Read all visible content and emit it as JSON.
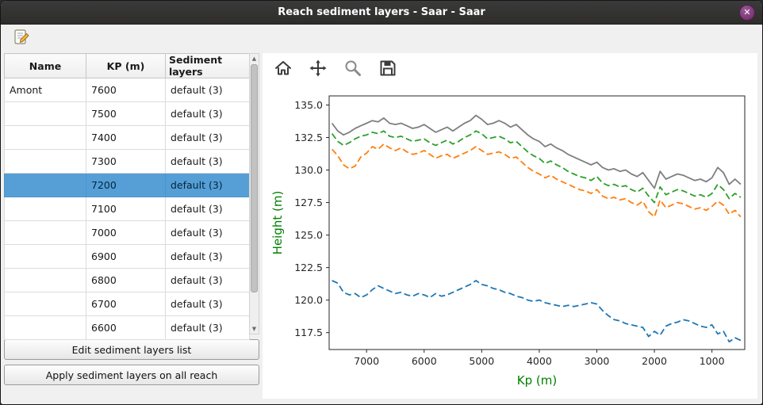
{
  "window": {
    "title": "Reach sediment layers - Saar - Saar",
    "close_glyph": "✕"
  },
  "icons": {
    "edit_tool": "notepad-pencil",
    "home": "house",
    "pan": "four-arrows",
    "zoom": "magnifier",
    "save": "floppy-disk",
    "close": "x-in-circle",
    "scroll_up_glyph": "▲",
    "scroll_down_glyph": "▼"
  },
  "table": {
    "columns": [
      "Name",
      "KP (m)",
      "Sediment layers"
    ],
    "selected_kp": "7200",
    "rows": [
      {
        "name": "Amont",
        "kp": "7600",
        "layers": "default (3)"
      },
      {
        "name": "",
        "kp": "7500",
        "layers": "default (3)"
      },
      {
        "name": "",
        "kp": "7400",
        "layers": "default (3)"
      },
      {
        "name": "",
        "kp": "7300",
        "layers": "default (3)"
      },
      {
        "name": "",
        "kp": "7200",
        "layers": "default (3)"
      },
      {
        "name": "",
        "kp": "7100",
        "layers": "default (3)"
      },
      {
        "name": "",
        "kp": "7000",
        "layers": "default (3)"
      },
      {
        "name": "",
        "kp": "6900",
        "layers": "default (3)"
      },
      {
        "name": "",
        "kp": "6800",
        "layers": "default (3)"
      },
      {
        "name": "",
        "kp": "6700",
        "layers": "default (3)"
      },
      {
        "name": "",
        "kp": "6600",
        "layers": "default (3)"
      }
    ]
  },
  "buttons": {
    "edit_label": "Edit sediment layers list",
    "apply_label": "Apply sediment layers on all reach"
  },
  "chart_data": {
    "type": "line",
    "title": "",
    "xlabel": "Kp (m)",
    "ylabel": "Height (m)",
    "axis_label_color": "#008000",
    "tick_color": "#262626",
    "x_reversed": true,
    "xlim": [
      7650,
      430
    ],
    "ylim": [
      116.2,
      135.7
    ],
    "xticks": [
      7000,
      6000,
      5000,
      4000,
      3000,
      2000,
      1000
    ],
    "yticks": [
      117.5,
      120.0,
      122.5,
      125.0,
      127.5,
      130.0,
      132.5,
      135.0
    ],
    "grid": false,
    "legend": "none",
    "x": [
      7600,
      7500,
      7400,
      7300,
      7200,
      7100,
      7000,
      6900,
      6800,
      6700,
      6600,
      6500,
      6400,
      6300,
      6200,
      6100,
      6000,
      5900,
      5800,
      5700,
      5600,
      5500,
      5400,
      5300,
      5200,
      5100,
      5000,
      4900,
      4800,
      4700,
      4600,
      4500,
      4400,
      4300,
      4200,
      4100,
      4000,
      3900,
      3800,
      3700,
      3600,
      3500,
      3400,
      3300,
      3200,
      3100,
      3000,
      2900,
      2800,
      2700,
      2600,
      2500,
      2400,
      2300,
      2200,
      2100,
      2000,
      1900,
      1800,
      1700,
      1600,
      1500,
      1400,
      1300,
      1200,
      1100,
      1000,
      900,
      800,
      700,
      600,
      500
    ],
    "series": [
      {
        "name": "blue-dashed",
        "color": "#1f77b4",
        "style": "dashed",
        "values": [
          121.5,
          121.3,
          120.6,
          120.4,
          120.5,
          120.2,
          120.4,
          120.8,
          121.1,
          120.9,
          120.7,
          120.5,
          120.6,
          120.4,
          120.3,
          120.5,
          120.4,
          120.2,
          120.5,
          120.3,
          120.4,
          120.6,
          120.8,
          121.0,
          121.2,
          121.5,
          121.2,
          121.1,
          120.9,
          120.8,
          120.6,
          120.5,
          120.3,
          120.2,
          120.0,
          119.9,
          120.0,
          119.8,
          119.7,
          119.6,
          119.5,
          119.6,
          119.5,
          119.6,
          119.7,
          119.8,
          119.7,
          119.2,
          118.8,
          118.5,
          118.4,
          118.2,
          118.1,
          118.0,
          117.9,
          117.2,
          117.6,
          117.3,
          118.0,
          118.2,
          118.3,
          118.5,
          118.4,
          118.2,
          118.0,
          117.9,
          118.1,
          117.4,
          117.6,
          116.8,
          117.1,
          116.9
        ]
      },
      {
        "name": "orange-dashed",
        "color": "#ff7f0e",
        "style": "dashed",
        "values": [
          131.6,
          131.1,
          130.4,
          130.1,
          130.3,
          131.0,
          131.3,
          131.8,
          131.6,
          132.0,
          131.7,
          131.5,
          131.7,
          131.4,
          131.2,
          131.3,
          131.5,
          131.2,
          130.9,
          131.1,
          131.2,
          130.9,
          131.1,
          131.3,
          131.5,
          131.8,
          131.5,
          131.2,
          131.3,
          131.4,
          131.2,
          130.9,
          131.0,
          130.6,
          130.2,
          129.9,
          129.7,
          129.4,
          129.6,
          129.3,
          129.1,
          128.9,
          128.7,
          128.5,
          128.4,
          128.2,
          128.5,
          128.0,
          127.8,
          127.9,
          127.7,
          127.8,
          127.5,
          127.3,
          127.6,
          126.8,
          126.4,
          127.7,
          127.1,
          127.3,
          127.5,
          127.4,
          127.2,
          127.0,
          127.1,
          126.9,
          127.2,
          127.6,
          127.3,
          126.6,
          126.9,
          126.4
        ]
      },
      {
        "name": "green-dashed",
        "color": "#2ca02c",
        "style": "dashed",
        "values": [
          132.8,
          132.2,
          131.9,
          132.1,
          132.4,
          132.6,
          132.7,
          132.9,
          132.8,
          133.0,
          132.6,
          132.5,
          132.6,
          132.4,
          132.2,
          132.3,
          132.4,
          132.1,
          131.9,
          132.1,
          132.3,
          132.0,
          132.2,
          132.5,
          132.7,
          133.0,
          132.8,
          132.4,
          132.5,
          132.6,
          132.4,
          132.1,
          132.2,
          131.8,
          131.4,
          131.1,
          130.9,
          130.5,
          130.7,
          130.4,
          130.2,
          129.9,
          129.7,
          129.5,
          129.4,
          129.2,
          129.5,
          129.0,
          128.8,
          128.9,
          128.7,
          128.8,
          128.5,
          128.3,
          128.6,
          128.0,
          127.5,
          128.7,
          128.1,
          128.3,
          128.5,
          128.4,
          128.2,
          128.0,
          128.1,
          127.9,
          128.2,
          128.9,
          128.5,
          127.8,
          128.2,
          127.9
        ]
      },
      {
        "name": "gray-solid",
        "color": "#7f7f7f",
        "style": "solid",
        "values": [
          133.6,
          133.0,
          132.7,
          132.9,
          133.2,
          133.4,
          133.6,
          133.8,
          133.7,
          134.0,
          133.6,
          133.5,
          133.6,
          133.4,
          133.2,
          133.3,
          133.5,
          133.2,
          132.9,
          133.1,
          133.3,
          133.0,
          133.3,
          133.6,
          133.8,
          134.2,
          133.9,
          133.5,
          133.6,
          133.8,
          133.6,
          133.3,
          133.5,
          133.1,
          132.7,
          132.4,
          132.2,
          131.8,
          132.0,
          131.7,
          131.5,
          131.2,
          131.0,
          130.8,
          130.6,
          130.4,
          130.6,
          130.2,
          130.0,
          130.1,
          129.9,
          130.0,
          129.7,
          129.5,
          129.8,
          129.2,
          128.6,
          129.9,
          129.3,
          129.5,
          129.7,
          129.6,
          129.4,
          129.2,
          129.3,
          129.1,
          129.4,
          130.2,
          129.8,
          128.9,
          129.3,
          128.9
        ]
      }
    ]
  }
}
